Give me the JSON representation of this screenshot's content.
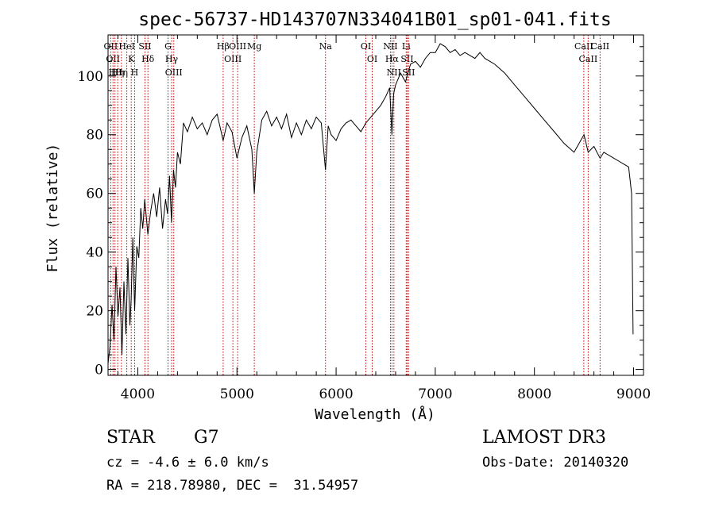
{
  "chart_data": {
    "type": "line",
    "title": "spec-56737-HD143707N334041B01_sp01-041.fits",
    "xlabel": "Wavelength (Å)",
    "ylabel": "Flux (relative)",
    "xlim": [
      3700,
      9100
    ],
    "ylim": [
      -2,
      114
    ],
    "xticks": [
      4000,
      5000,
      6000,
      7000,
      8000,
      9000
    ],
    "yticks": [
      0,
      20,
      40,
      60,
      80,
      100
    ],
    "grid": false,
    "series": [
      {
        "x": [
          3700,
          3720,
          3740,
          3760,
          3780,
          3800,
          3820,
          3840,
          3860,
          3880,
          3900,
          3920,
          3933,
          3950,
          3968,
          3990,
          4010,
          4030,
          4050,
          4070,
          4101,
          4130,
          4160,
          4190,
          4220,
          4250,
          4280,
          4300,
          4320,
          4340,
          4360,
          4380,
          4400,
          4430,
          4460,
          4500,
          4550,
          4600,
          4650,
          4700,
          4750,
          4800,
          4861,
          4900,
          4950,
          5000,
          5050,
          5100,
          5150,
          5175,
          5200,
          5250,
          5300,
          5350,
          5400,
          5450,
          5500,
          5550,
          5600,
          5650,
          5700,
          5750,
          5800,
          5850,
          5893,
          5920,
          5950,
          6000,
          6050,
          6100,
          6150,
          6200,
          6250,
          6300,
          6350,
          6400,
          6450,
          6500,
          6540,
          6563,
          6580,
          6600,
          6650,
          6700,
          6750,
          6800,
          6850,
          6900,
          6950,
          7000,
          7050,
          7100,
          7150,
          7200,
          7250,
          7300,
          7350,
          7400,
          7450,
          7500,
          7600,
          7700,
          7800,
          7900,
          8000,
          8100,
          8200,
          8300,
          8400,
          8500,
          8542,
          8600,
          8662,
          8700,
          8800,
          8850,
          8900,
          8950,
          8980,
          8995
        ],
        "y": [
          2,
          8,
          22,
          10,
          35,
          18,
          28,
          5,
          30,
          12,
          38,
          15,
          24,
          45,
          20,
          42,
          38,
          55,
          48,
          58,
          46,
          54,
          60,
          52,
          62,
          48,
          58,
          53,
          66,
          50,
          68,
          62,
          74,
          70,
          84,
          81,
          86,
          82,
          84,
          80,
          85,
          87,
          78,
          84,
          81,
          72,
          79,
          83,
          75,
          60,
          74,
          85,
          88,
          83,
          86,
          82,
          87,
          79,
          84,
          80,
          85,
          82,
          86,
          84,
          68,
          83,
          80,
          78,
          82,
          84,
          85,
          83,
          81,
          84,
          86,
          88,
          90,
          93,
          96,
          80,
          94,
          97,
          101,
          98,
          104,
          105,
          103,
          106,
          108,
          108,
          111,
          110,
          108,
          109,
          107,
          108,
          107,
          106,
          108,
          106,
          104,
          101,
          97,
          93,
          89,
          85,
          81,
          77,
          74,
          80,
          74,
          76,
          72,
          74,
          72,
          71,
          70,
          69,
          60,
          12
        ]
      }
    ],
    "lines": [
      {
        "x": 3727,
        "label": "OII"
      },
      {
        "x": 3750,
        "label": "OII"
      },
      {
        "x": 3770,
        "label": "Hθ"
      },
      {
        "x": 3797,
        "label": "Hη"
      },
      {
        "x": 3835,
        "label": "Hη"
      },
      {
        "x": 3889,
        "label": "HeI"
      },
      {
        "x": 3934,
        "label": "K"
      },
      {
        "x": 3968,
        "label": "H"
      },
      {
        "x": 4072,
        "label": "SII"
      },
      {
        "x": 4102,
        "label": "Hδ"
      },
      {
        "x": 4305,
        "label": "G"
      },
      {
        "x": 4341,
        "label": "Hγ"
      },
      {
        "x": 4363,
        "label": "OIII"
      },
      {
        "x": 4861,
        "label": "Hβ"
      },
      {
        "x": 4959,
        "label": "OIII"
      },
      {
        "x": 5007,
        "label": "OIII"
      },
      {
        "x": 5175,
        "label": "Mg"
      },
      {
        "x": 5893,
        "label": "Na"
      },
      {
        "x": 6300,
        "label": "OI"
      },
      {
        "x": 6364,
        "label": "OI"
      },
      {
        "x": 6548,
        "label": "NII"
      },
      {
        "x": 6563,
        "label": "Hα"
      },
      {
        "x": 6583,
        "label": "NII"
      },
      {
        "x": 6707,
        "label": "Li"
      },
      {
        "x": 6716,
        "label": "SII"
      },
      {
        "x": 6731,
        "label": "SII"
      },
      {
        "x": 8498,
        "label": "CaII"
      },
      {
        "x": 8542,
        "label": "CaII"
      },
      {
        "x": 8662,
        "label": "CaII"
      }
    ]
  },
  "info": {
    "object_class": "STAR",
    "subclass": "G7",
    "survey": "LAMOST DR3",
    "cz": "cz = -4.6 ± 6.0 km/s",
    "obs_date": "Obs-Date: 20140320",
    "coords": "RA = 218.78980, DEC =  31.54957"
  }
}
